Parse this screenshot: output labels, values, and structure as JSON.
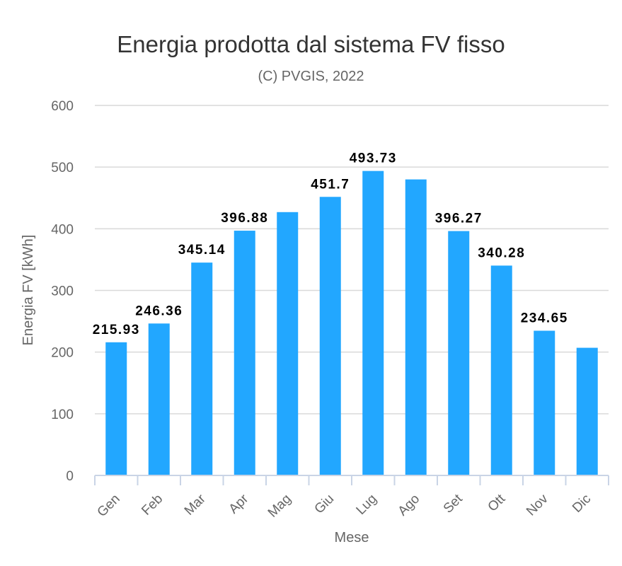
{
  "colors": {
    "bar": "#22a7ff",
    "grid": "#d9d9d9",
    "axis": "#c9d4e6"
  },
  "chart_data": {
    "type": "bar",
    "title": "Energia prodotta dal sistema FV fisso",
    "subtitle": "(C) PVGIS, 2022",
    "xlabel": "Mese",
    "ylabel": "Energia FV [kWh]",
    "ylim": [
      0,
      600
    ],
    "yticks": [
      "0",
      "100",
      "200",
      "300",
      "400",
      "500",
      "600"
    ],
    "grid": true,
    "categories": [
      "Gen",
      "Feb",
      "Mar",
      "Apr",
      "Mag",
      "Giu",
      "Lug",
      "Ago",
      "Set",
      "Ott",
      "Nov",
      "Dic"
    ],
    "values": [
      215.93,
      246.36,
      345.14,
      396.88,
      427,
      451.7,
      493.73,
      480,
      396.27,
      340.28,
      234.65,
      207
    ],
    "data_labels": [
      "215.93",
      "246.36",
      "345.14",
      "396.88",
      "",
      "451.7",
      "493.73",
      "",
      "396.27",
      "340.28",
      "234.65",
      ""
    ]
  }
}
